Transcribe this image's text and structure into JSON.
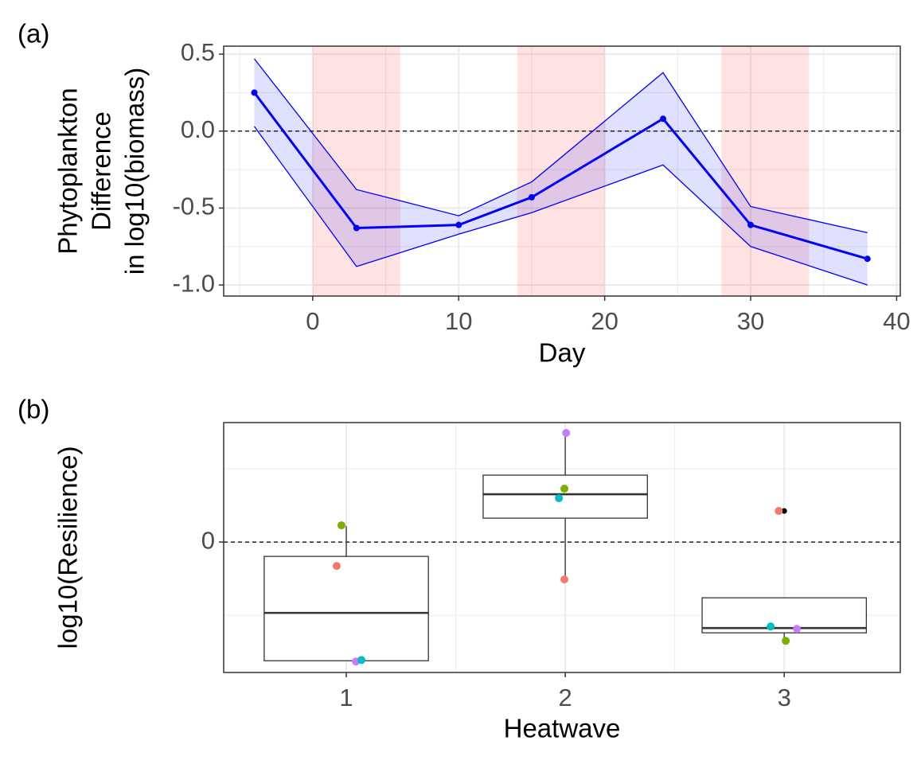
{
  "chart_data": [
    {
      "type": "line",
      "tag": "(a)",
      "xlabel": "Day",
      "ylabel": [
        "Phytoplankton",
        "Difference",
        "in log10(biomass)"
      ],
      "x": [
        -4,
        3,
        10,
        15,
        24,
        30,
        38
      ],
      "values": [
        0.25,
        -0.63,
        -0.61,
        -0.43,
        0.08,
        -0.61,
        -0.83
      ],
      "upper": [
        0.47,
        -0.38,
        -0.55,
        -0.33,
        0.38,
        -0.49,
        -0.66
      ],
      "lower": [
        0.03,
        -0.88,
        -0.67,
        -0.53,
        -0.22,
        -0.75,
        -1.0
      ],
      "color": "#0000ff",
      "band_color": "#0000ff",
      "shaded_ranges": [
        [
          0,
          6
        ],
        [
          14,
          20
        ],
        [
          28,
          34
        ]
      ],
      "shade_color": "#ff0000",
      "hline": 0,
      "xlim": [
        -6.1,
        40.25
      ],
      "ylim": [
        -1.072,
        0.552
      ],
      "xticks": [
        0,
        10,
        20,
        30,
        40
      ],
      "yticks": [
        0.5,
        {
          "value": 0,
          "label": "0.0"
        },
        -0.5,
        {
          "value": -1,
          "label": "-1.0"
        }
      ],
      "x_minor_grid": [
        -5,
        5,
        15,
        25,
        35
      ],
      "y_minor_grid": [
        0.25,
        -0.25,
        -0.75
      ],
      "grid": true
    },
    {
      "type": "box",
      "tag": "(b)",
      "xlabel": "Heatwave",
      "ylabel": [
        "log10(Resilience)"
      ],
      "categories": [
        "1",
        "2",
        "3"
      ],
      "boxes": [
        {
          "whisker_low": -1.62,
          "q1": -1.62,
          "median": -0.967,
          "q3": -0.196,
          "whisker_high": 0.217
        },
        {
          "whisker_low": -0.5,
          "q1": 0.326,
          "median": 0.652,
          "q3": 0.913,
          "whisker_high": 1.478
        },
        {
          "whisker_low": -1.348,
          "q1": -1.239,
          "median": -1.174,
          "q3": -0.761,
          "whisker_high": -0.761
        }
      ],
      "outliers": [
        {
          "category": 3,
          "y": 0.424
        }
      ],
      "points": {
        "x": [
          0.978,
          0.956,
          1.044,
          1.069,
          2.004,
          1.996,
          1.971,
          1.996,
          2.975,
          2.938,
          3.058,
          3.007
        ],
        "y": [
          0.228,
          -0.326,
          -1.63,
          -1.61,
          1.489,
          0.728,
          0.598,
          -0.511,
          0.424,
          -1.152,
          -1.185,
          -1.348
        ],
        "colors": [
          "#7CAE00",
          "#F8766D",
          "#C77CFF",
          "#00BFC4",
          "#C77CFF",
          "#7CAE00",
          "#00BFC4",
          "#F8766D",
          "#F8766D",
          "#00BFC4",
          "#C77CFF",
          "#7CAE00"
        ]
      },
      "hline": 0,
      "xlim": [
        0.44,
        3.53
      ],
      "ylim": [
        -1.78,
        1.63
      ],
      "yticks": [
        0
      ],
      "y_minor_grid": [
        -1,
        1
      ],
      "x_minor_grid": [
        1.5,
        2.5
      ],
      "grid": true
    }
  ]
}
